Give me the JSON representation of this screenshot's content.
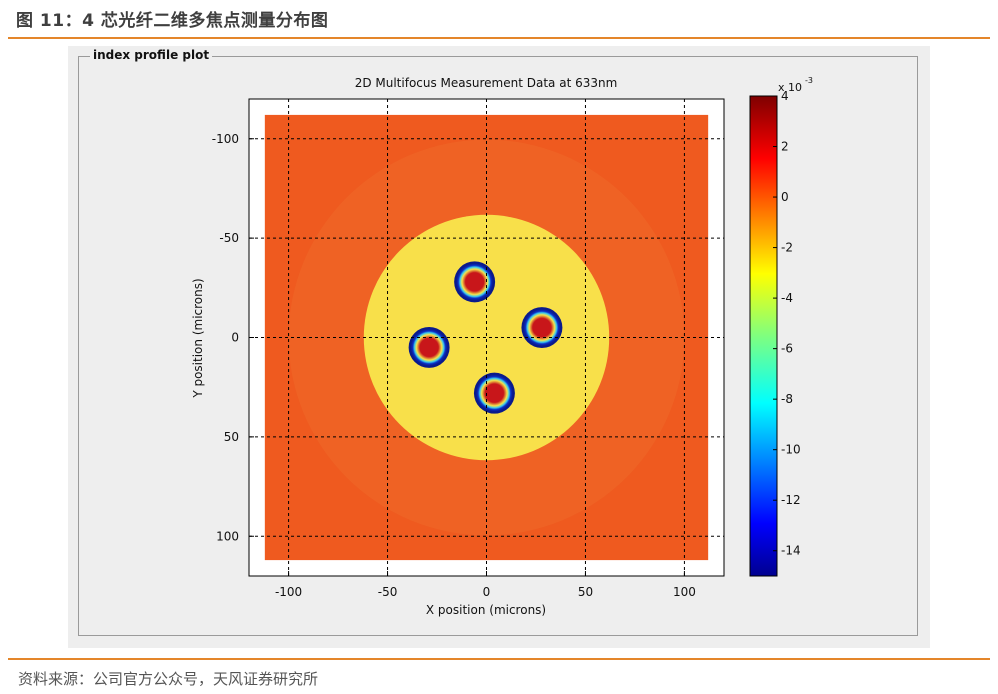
{
  "figure": {
    "title": "图 11：4 芯光纤二维多焦点测量分布图",
    "source": "资料来源：公司官方公众号，天风证券研究所"
  },
  "panel": {
    "group_label": "index profile plot"
  },
  "colors": {
    "accent_rule": "#e4862a",
    "cladding": "#ef5a1f",
    "core": "#f8e04a",
    "ring": "#0a1a8c",
    "peak": "#c8161a"
  },
  "chart_data": {
    "type": "heatmap",
    "title": "2D Multifocus Measurement Data at 633nm",
    "xlabel": "X position (microns)",
    "ylabel": "Y position (microns)",
    "xlim": [
      -120,
      120
    ],
    "ylim": [
      -120,
      120
    ],
    "y_inverted": true,
    "x_ticks": [
      "-100",
      "-50",
      "0",
      "50",
      "100"
    ],
    "x_tick_values": [
      -100,
      -50,
      0,
      50,
      100
    ],
    "y_ticks": [
      "-100",
      "-50",
      "0",
      "50",
      "100"
    ],
    "y_tick_values": [
      -100,
      -50,
      0,
      50,
      100
    ],
    "grid": true,
    "data_extent": [
      -112,
      112
    ],
    "cladding_value": 0.0,
    "core_region": {
      "center": [
        0,
        0
      ],
      "radius": 62,
      "value": -2.2
    },
    "cores": [
      {
        "name": "core-top",
        "x": -6,
        "y": -28,
        "peak": 3.5,
        "ring_min": -14,
        "ring_radius": 9
      },
      {
        "name": "core-right",
        "x": 28,
        "y": -5,
        "peak": 3.5,
        "ring_min": -14,
        "ring_radius": 9
      },
      {
        "name": "core-left",
        "x": -29,
        "y": 5,
        "peak": 3.5,
        "ring_min": -14,
        "ring_radius": 9
      },
      {
        "name": "core-bottom",
        "x": 4,
        "y": 28,
        "peak": 3.5,
        "ring_min": -14,
        "ring_radius": 9
      }
    ],
    "colorbar": {
      "multiplier": "x 10",
      "exponent": "-3",
      "min": -15,
      "max": 4,
      "tick_values": [
        4,
        2,
        0,
        -2,
        -4,
        -6,
        -8,
        -10,
        -12,
        -14
      ],
      "tick_labels": [
        "4",
        "2",
        "0",
        "-2",
        "-4",
        "-6",
        "-8",
        "-10",
        "-12",
        "-14"
      ],
      "colormap": "jet"
    }
  }
}
